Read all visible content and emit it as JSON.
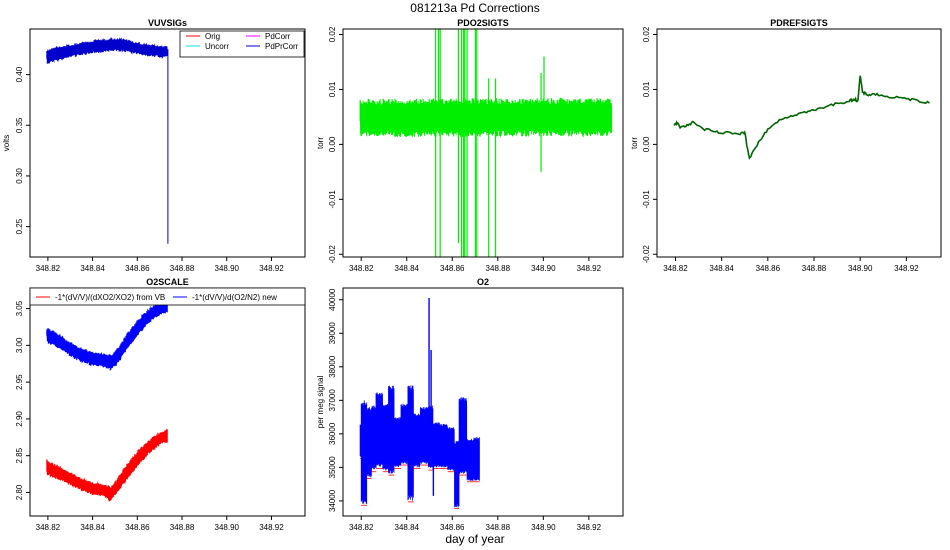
{
  "figure": {
    "title": "081213a   Pd Corrections",
    "xlabel": "day of year"
  },
  "chart_data": [
    {
      "id": "vuvsigs",
      "type": "line",
      "title": "VUVSIGs",
      "ylabel": "volts",
      "xlim": [
        348.812,
        348.935
      ],
      "ylim": [
        0.22,
        0.445
      ],
      "xticks": [
        "348.82",
        "348.84",
        "348.86",
        "348.88",
        "348.90",
        "348.92"
      ],
      "yticks": [
        "0.25",
        "0.30",
        "0.35",
        "0.40"
      ],
      "legend": {
        "placement": "top-right",
        "entries": [
          {
            "label": "Orig",
            "color": "#ff0000"
          },
          {
            "label": "PdCorr",
            "color": "#ff00ff"
          },
          {
            "label": "Uncorr",
            "color": "#00e5ee"
          },
          {
            "label": "PdPrCorr",
            "color": "#0000cd"
          }
        ]
      },
      "series": [
        {
          "name": "PdPrCorr",
          "color": "#0000cd",
          "style": "band",
          "x": [
            348.8195,
            348.825,
            348.83,
            348.835,
            348.84,
            348.845,
            348.85,
            348.855,
            348.86,
            348.865,
            348.87,
            348.8735
          ],
          "lower": [
            0.41,
            0.414,
            0.417,
            0.419,
            0.421,
            0.422,
            0.423,
            0.422,
            0.42,
            0.418,
            0.417,
            0.417
          ],
          "upper": [
            0.425,
            0.428,
            0.43,
            0.432,
            0.434,
            0.435,
            0.436,
            0.435,
            0.432,
            0.43,
            0.429,
            0.428
          ]
        },
        {
          "name": "drop",
          "color": "#0000cd",
          "style": "line",
          "x": [
            348.8737,
            348.8737
          ],
          "y": [
            0.425,
            0.233
          ]
        }
      ]
    },
    {
      "id": "pdo2sigts",
      "type": "line",
      "title": "PDO2SIGTS",
      "ylabel": "torr",
      "xlim": [
        348.812,
        348.935
      ],
      "ylim": [
        -0.0205,
        0.021
      ],
      "xticks": [
        "348.82",
        "348.84",
        "348.86",
        "348.88",
        "348.90",
        "348.92"
      ],
      "yticks": [
        "-0.02",
        "-0.01",
        "0.00",
        "0.01",
        "0.02"
      ],
      "series": [
        {
          "name": "",
          "color": "#00ee00",
          "style": "band",
          "x": [
            348.8195,
            348.93
          ],
          "lower": [
            0.0013,
            0.0015
          ],
          "upper": [
            0.0083,
            0.0085
          ]
        },
        {
          "name": "",
          "color": "#00ee00",
          "style": "spikes",
          "x": [
            348.8527,
            348.854,
            348.8547,
            348.8627,
            348.8641,
            348.865,
            348.8655,
            348.8665,
            348.8702,
            348.8708,
            348.876,
            348.879,
            348.899,
            348.9003
          ],
          "lower": [
            -0.0205,
            0.002,
            -0.0205,
            -0.018,
            -0.0205,
            -0.0205,
            -0.0205,
            -0.0205,
            -0.0205,
            -0.0205,
            -0.0205,
            -0.0205,
            -0.005,
            0.002
          ],
          "upper": [
            0.021,
            0.021,
            0.021,
            0.021,
            0.021,
            0.021,
            0.021,
            0.021,
            0.021,
            0.021,
            0.012,
            0.012,
            0.013,
            0.016
          ]
        }
      ]
    },
    {
      "id": "pdrefsigts",
      "type": "line",
      "title": "PDREFSIGTS",
      "ylabel": "torr",
      "xlim": [
        348.812,
        348.935
      ],
      "ylim": [
        -0.0205,
        0.021
      ],
      "xticks": [
        "348.82",
        "348.84",
        "348.86",
        "348.88",
        "348.90",
        "348.92"
      ],
      "yticks": [
        "-0.02",
        "-0.01",
        "0.00",
        "0.01",
        "0.02"
      ],
      "series": [
        {
          "name": "",
          "color": "#006400",
          "style": "line",
          "x": [
            348.8195,
            348.8205,
            348.822,
            348.825,
            348.828,
            348.832,
            348.836,
            348.84,
            348.844,
            348.848,
            348.85,
            348.851,
            348.852,
            348.856,
            348.86,
            348.865,
            348.87,
            348.875,
            348.88,
            348.885,
            348.89,
            348.895,
            348.897,
            348.899,
            348.9,
            348.901,
            348.903,
            348.906,
            348.91,
            348.915,
            348.92,
            348.925,
            348.93
          ],
          "y": [
            0.0034,
            0.004,
            0.003,
            0.0036,
            0.004,
            0.0028,
            0.0024,
            0.002,
            0.0021,
            0.0018,
            0.0022,
            -0.0004,
            -0.0025,
            0.0005,
            0.0028,
            0.0045,
            0.0052,
            0.0058,
            0.0062,
            0.0068,
            0.0075,
            0.0078,
            0.0082,
            0.008,
            0.0125,
            0.0095,
            0.009,
            0.0092,
            0.0088,
            0.0085,
            0.0083,
            0.008,
            0.0075
          ]
        }
      ]
    },
    {
      "id": "o2scale",
      "type": "line",
      "title": "O2SCALE",
      "ylabel": "",
      "xlim": [
        348.812,
        348.935
      ],
      "ylim": [
        2.768,
        3.078
      ],
      "xticks": [
        "348.82",
        "348.84",
        "348.86",
        "348.88",
        "348.90",
        "348.92"
      ],
      "yticks": [
        "2.80",
        "2.85",
        "2.90",
        "2.95",
        "3.00",
        "3.05"
      ],
      "legend": {
        "placement": "top",
        "entries": [
          {
            "label": "-1*(dV/V)/(dXO2/XO2) from VB",
            "color": "#ff0000"
          },
          {
            "label": "-1*(dV/V)/d(O2/N2) new",
            "color": "#0000ff"
          }
        ]
      },
      "series": [
        {
          "name": "-1*(dV/V)/d(O2/N2) new",
          "color": "#0000ff",
          "style": "band",
          "x": [
            348.8195,
            348.825,
            348.83,
            348.835,
            348.84,
            348.845,
            348.848,
            348.85,
            348.852,
            348.855,
            348.86,
            348.865,
            348.87,
            348.8735
          ],
          "lower": [
            3.003,
            2.995,
            2.985,
            2.977,
            2.972,
            2.971,
            2.966,
            2.97,
            2.978,
            2.992,
            3.012,
            3.03,
            3.04,
            3.044
          ],
          "upper": [
            3.025,
            3.016,
            3.005,
            2.997,
            2.992,
            2.99,
            2.988,
            2.992,
            3.0,
            3.015,
            3.035,
            3.05,
            3.06,
            3.062
          ]
        },
        {
          "name": "-1*(dV/V)/(dXO2/XO2) from VB",
          "color": "#ff0000",
          "style": "band",
          "x": [
            348.8195,
            348.825,
            348.83,
            348.835,
            348.84,
            348.845,
            348.848,
            348.85,
            348.852,
            348.855,
            348.86,
            348.865,
            348.87,
            348.8735
          ],
          "lower": [
            2.823,
            2.817,
            2.81,
            2.802,
            2.797,
            2.795,
            2.787,
            2.795,
            2.803,
            2.815,
            2.835,
            2.852,
            2.864,
            2.868
          ],
          "upper": [
            2.845,
            2.836,
            2.828,
            2.82,
            2.814,
            2.812,
            2.808,
            2.815,
            2.825,
            2.838,
            2.857,
            2.872,
            2.882,
            2.886
          ]
        }
      ]
    },
    {
      "id": "o2",
      "type": "line",
      "title": "O2",
      "ylabel": "per meg signal",
      "xlim": [
        348.812,
        348.935
      ],
      "ylim": [
        33550,
        40350
      ],
      "xticks": [
        "348.82",
        "348.84",
        "348.86",
        "348.88",
        "348.90",
        "348.92"
      ],
      "yticks": [
        "34000",
        "35000",
        "36000",
        "37000",
        "38000",
        "39000",
        "40000"
      ],
      "series": [
        {
          "name": "",
          "color": "#0000ff",
          "style": "blocks",
          "blocks": [
            {
              "x": [
                348.8195,
                348.82
              ],
              "lo": 35300,
              "hi": 36300
            },
            {
              "x": [
                348.82,
                348.8225
              ],
              "lo": 33900,
              "hi": 37000
            },
            {
              "x": [
                348.8225,
                348.8245
              ],
              "lo": 34700,
              "hi": 36800
            },
            {
              "x": [
                348.8245,
                348.8265
              ],
              "lo": 34900,
              "hi": 36850
            },
            {
              "x": [
                348.8265,
                348.8295
              ],
              "lo": 35000,
              "hi": 37250
            },
            {
              "x": [
                348.8295,
                348.832
              ],
              "lo": 34900,
              "hi": 36900
            },
            {
              "x": [
                348.832,
                348.8345
              ],
              "lo": 34800,
              "hi": 37450
            },
            {
              "x": [
                348.8345,
                348.8375
              ],
              "lo": 35000,
              "hi": 36500
            },
            {
              "x": [
                348.8375,
                348.8405
              ],
              "lo": 35100,
              "hi": 36900
            },
            {
              "x": [
                348.8405,
                348.843
              ],
              "lo": 34000,
              "hi": 37450
            },
            {
              "x": [
                348.843,
                348.846
              ],
              "lo": 35000,
              "hi": 36600
            },
            {
              "x": [
                348.846,
                348.8495
              ],
              "lo": 35100,
              "hi": 36800
            },
            {
              "x": [
                348.8495,
                348.8515
              ],
              "lo": 34950,
              "hi": 36850
            },
            {
              "x": [
                348.8515,
                348.8545
              ],
              "lo": 35000,
              "hi": 36350
            },
            {
              "x": [
                348.8545,
                348.858
              ],
              "lo": 35000,
              "hi": 36300
            },
            {
              "x": [
                348.858,
                348.861
              ],
              "lo": 34900,
              "hi": 36200
            },
            {
              "x": [
                348.861,
                348.863
              ],
              "lo": 33800,
              "hi": 35800
            },
            {
              "x": [
                348.863,
                348.8665
              ],
              "lo": 34800,
              "hi": 37100
            },
            {
              "x": [
                348.8665,
                348.8695
              ],
              "lo": 34600,
              "hi": 35850
            },
            {
              "x": [
                348.8695,
                348.872
              ],
              "lo": 34600,
              "hi": 35900
            }
          ],
          "spikes": [
            {
              "x": 348.8498,
              "lo": 35200,
              "hi": 40050
            },
            {
              "x": 348.8507,
              "lo": 35000,
              "hi": 38500
            },
            {
              "x": 348.8517,
              "lo": 34150,
              "hi": 36000
            }
          ]
        }
      ]
    }
  ]
}
